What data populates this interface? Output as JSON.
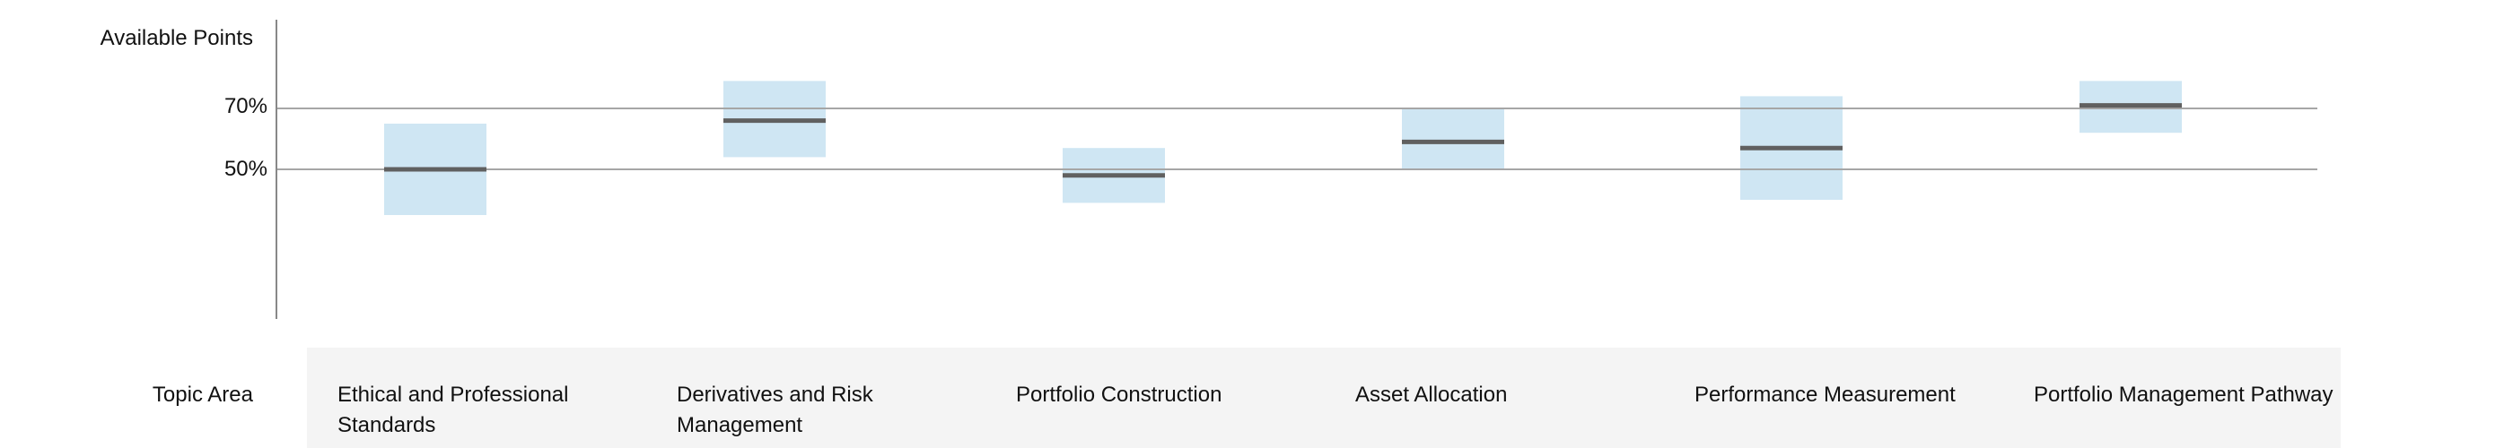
{
  "colors": {
    "box_fill": "#cfe6f3",
    "median_line": "#606060",
    "reference_line": "#a6a6a6",
    "axis_line": "#888888",
    "category_band": "#f4f4f4",
    "text": "#111111"
  },
  "chart_data": {
    "type": "box-range",
    "ylabel": "Available Points",
    "xlabel": "Topic Area",
    "y_unit": "%",
    "ylim": [
      0,
      100
    ],
    "y_ticks": [
      {
        "value": 50,
        "label": "50%"
      },
      {
        "value": 70,
        "label": "70%"
      }
    ],
    "reference_lines": [
      50,
      70
    ],
    "grid": false,
    "categories": [
      "Ethical and Professional Standards",
      "Derivatives and Risk Management",
      "Portfolio Construction",
      "Asset Allocation",
      "Performance Measurement",
      "Portfolio Management Pathway"
    ],
    "series": [
      {
        "low": [
          35,
          54,
          39,
          50,
          40,
          62
        ],
        "high": [
          65,
          79,
          57,
          70,
          74,
          79
        ],
        "mid": [
          50,
          66,
          48,
          59,
          57,
          71
        ]
      }
    ]
  }
}
